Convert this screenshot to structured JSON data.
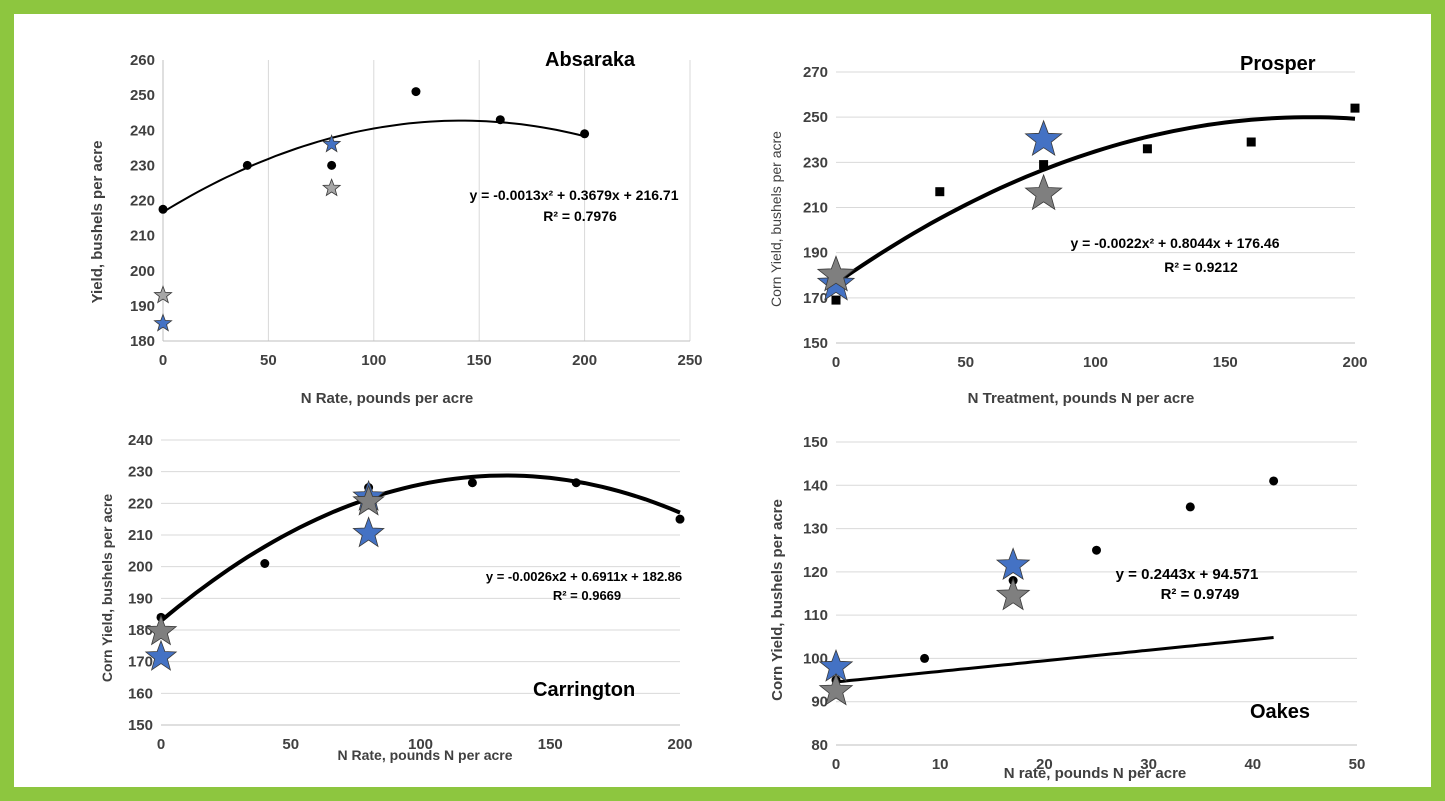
{
  "colors": {
    "border": "#8dc63f",
    "blue_star": "#4472c4",
    "gray_star": "#7f7f7f",
    "light_gray_star": "#a6a6a6",
    "points": "#000000",
    "grid": "#d9d9d9"
  },
  "chart_data": [
    {
      "type": "scatter",
      "title": "Absaraka",
      "xlabel": "N Rate, pounds per acre",
      "ylabel": "Yield, bushels per acre",
      "xlim": [
        0,
        250
      ],
      "ylim": [
        180,
        260
      ],
      "x_ticks": [
        "0",
        "50",
        "100",
        "150",
        "200",
        "250"
      ],
      "y_ticks": [
        "180",
        "190",
        "200",
        "210",
        "220",
        "230",
        "240",
        "250",
        "260"
      ],
      "grid": "vertical",
      "series": [
        {
          "marker": "circle",
          "color": "#000000",
          "x": [
            0,
            40,
            80,
            120,
            160,
            200
          ],
          "y": [
            217.5,
            230,
            230,
            251,
            243,
            239
          ]
        },
        {
          "marker": "star",
          "color": "#4472c4",
          "x": [
            0,
            80
          ],
          "y": [
            185,
            236
          ]
        },
        {
          "marker": "star",
          "color": "#a6a6a6",
          "x": [
            0,
            80
          ],
          "y": [
            193,
            223.5
          ]
        }
      ],
      "trendline": {
        "a": -0.0013,
        "b": 0.3679,
        "c": 216.71,
        "range": [
          0,
          200
        ]
      },
      "equation": "y = -0.0013x² + 0.3679x + 216.71",
      "r2": "R² = 0.7976"
    },
    {
      "type": "scatter",
      "title": "Prosper",
      "xlabel": "N Treatment, pounds N per acre",
      "ylabel": "Corn Yield, bushels per acre",
      "xlim": [
        0,
        200
      ],
      "ylim": [
        150,
        270
      ],
      "x_ticks": [
        "0",
        "50",
        "100",
        "150",
        "200"
      ],
      "y_ticks": [
        "150",
        "170",
        "190",
        "210",
        "230",
        "250",
        "270"
      ],
      "grid": "horizontal",
      "series": [
        {
          "marker": "square",
          "color": "#000000",
          "x": [
            0,
            40,
            80,
            120,
            160,
            200
          ],
          "y": [
            169,
            217,
            229,
            236,
            239,
            254
          ]
        },
        {
          "marker": "star",
          "color": "#4472c4",
          "x": [
            0,
            80
          ],
          "y": [
            176,
            240
          ]
        },
        {
          "marker": "star",
          "color": "#7f7f7f",
          "x": [
            0,
            80
          ],
          "y": [
            180,
            216
          ]
        }
      ],
      "trendline": {
        "a": -0.0022,
        "b": 0.8044,
        "c": 176.46,
        "range": [
          0,
          200
        ]
      },
      "equation": "y = -0.0022x² + 0.8044x + 176.46",
      "r2": "R² = 0.9212"
    },
    {
      "type": "scatter",
      "title": "Carrington",
      "xlabel": "N Rate, pounds N per acre",
      "ylabel": "Corn Yield, bushels per acre",
      "xlim": [
        0,
        200
      ],
      "ylim": [
        150,
        240
      ],
      "x_ticks": [
        "0",
        "50",
        "100",
        "150",
        "200"
      ],
      "y_ticks": [
        "150",
        "160",
        "170",
        "180",
        "190",
        "200",
        "210",
        "220",
        "230",
        "240"
      ],
      "grid": "horizontal",
      "series": [
        {
          "marker": "circle",
          "color": "#000000",
          "x": [
            0,
            40,
            80,
            120,
            160,
            200
          ],
          "y": [
            184,
            201,
            225,
            226.5,
            226.5,
            215
          ]
        },
        {
          "marker": "star",
          "color": "#4472c4",
          "x": [
            0,
            80,
            80
          ],
          "y": [
            171.5,
            210.5,
            222
          ]
        },
        {
          "marker": "star",
          "color": "#7f7f7f",
          "x": [
            0,
            80
          ],
          "y": [
            179.5,
            220.5
          ]
        }
      ],
      "trendline": {
        "a": -0.0026,
        "b": 0.6911,
        "c": 182.86,
        "range": [
          0,
          200
        ]
      },
      "equation": "y = -0.0026x2 + 0.6911x + 182.86",
      "r2": "R² = 0.9669"
    },
    {
      "type": "scatter",
      "title": "Oakes",
      "xlabel": "N rate, pounds N per acre",
      "ylabel": "Corn Yield, bushels per acre",
      "xlim": [
        0,
        50
      ],
      "ylim": [
        80,
        150
      ],
      "x_ticks": [
        "0",
        "10",
        "20",
        "30",
        "40",
        "50"
      ],
      "y_ticks": [
        "80",
        "90",
        "100",
        "110",
        "120",
        "130",
        "140",
        "150"
      ],
      "grid": "horizontal",
      "series": [
        {
          "marker": "circle",
          "color": "#000000",
          "x": [
            0,
            8.5,
            17,
            25,
            34,
            42
          ],
          "y": [
            95,
            100,
            118,
            125,
            135,
            141
          ]
        },
        {
          "marker": "star",
          "color": "#4472c4",
          "x": [
            0,
            17
          ],
          "y": [
            98,
            121.5
          ]
        },
        {
          "marker": "star",
          "color": "#7f7f7f",
          "x": [
            0,
            17
          ],
          "y": [
            92.5,
            114.5
          ]
        }
      ],
      "trendline": {
        "a": 0,
        "b": 0.2443,
        "c": 94.571,
        "range": [
          0,
          42
        ]
      },
      "equation": "y = 0.2443x + 94.571",
      "r2": "R² = 0.9749"
    }
  ]
}
